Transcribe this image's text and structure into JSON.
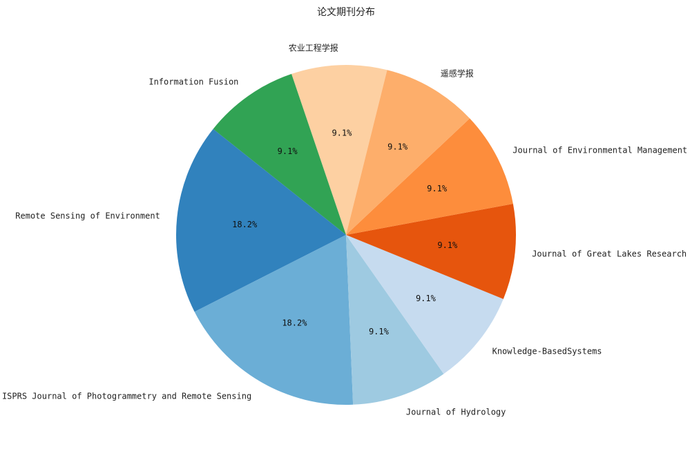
{
  "chart_data": {
    "type": "pie",
    "title": "论文期刊分布",
    "start_angle_deg": 76,
    "direction": "counterclockwise",
    "slices": [
      {
        "label": "农业工程学报",
        "value": 1,
        "pct_label": "9.1%",
        "color": "#fdd0a2"
      },
      {
        "label": "Information Fusion",
        "value": 1,
        "pct_label": "9.1%",
        "color": "#31a354"
      },
      {
        "label": "Remote Sensing of Environment",
        "value": 2,
        "pct_label": "18.2%",
        "color": "#3182bd"
      },
      {
        "label": "ISPRS Journal of Photogrammetry and Remote Sensing",
        "value": 2,
        "pct_label": "18.2%",
        "color": "#6baed6"
      },
      {
        "label": "Journal of Hydrology",
        "value": 1,
        "pct_label": "9.1%",
        "color": "#9ecae1"
      },
      {
        "label": "Knowledge-BasedSystems",
        "value": 1,
        "pct_label": "9.1%",
        "color": "#c6dbef"
      },
      {
        "label": "Journal of Great Lakes Research",
        "value": 1,
        "pct_label": "9.1%",
        "color": "#e6550d"
      },
      {
        "label": "Journal of Environmental Management",
        "value": 1,
        "pct_label": "9.1%",
        "color": "#fd8d3c"
      },
      {
        "label": "遥感学报",
        "value": 1,
        "pct_label": "9.1%",
        "color": "#fdae6b"
      }
    ]
  }
}
